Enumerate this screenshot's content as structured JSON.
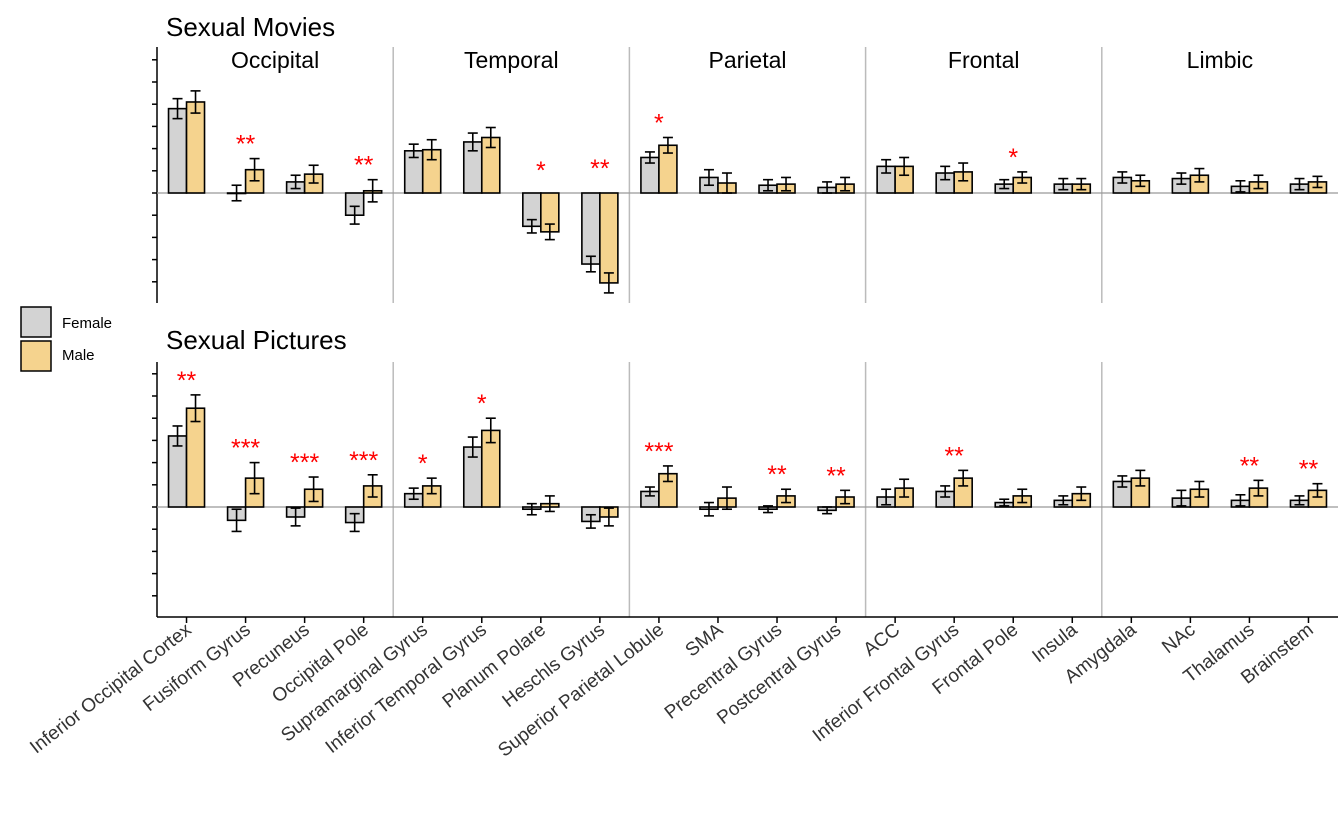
{
  "colors": {
    "female": "#d3d3d3",
    "male": "#f5d38e",
    "significance": "#ff0000",
    "divider": "#bbbbbb",
    "bar_stroke": "#000000"
  },
  "legend": {
    "entries": [
      "Female",
      "Male"
    ]
  },
  "chart_data": {
    "type": "bar",
    "groups": [
      "Occipital",
      "Temporal",
      "Parietal",
      "Frontal",
      "Limbic"
    ],
    "group_spans": [
      [
        0,
        3
      ],
      [
        4,
        7
      ],
      [
        8,
        11
      ],
      [
        12,
        15
      ],
      [
        16,
        19
      ]
    ],
    "categories": [
      "Inferior Occipital Cortex",
      "Fusiform Gyrus",
      "Precuneus",
      "Occipital Pole",
      "Supramarginal Gyrus",
      "Inferior Temporal Gyrus",
      "Planum Polare",
      "Heschls Gyrus",
      "Superior Parietal Lobule",
      "SMA",
      "Precentral Gyrus",
      "Postcentral Gyrus",
      "ACC",
      "Inferior Frontal Gyrus",
      "Frontal Pole",
      "Insula",
      "Amygdala",
      "NAc",
      "Thalamus",
      "Brainstem"
    ],
    "panels": [
      {
        "title": "Sexual Movies",
        "ylim": [
          -5,
          7
        ],
        "yticks": [
          -4,
          -3,
          -2,
          -1,
          0,
          1,
          2,
          3,
          4,
          5,
          6
        ],
        "series": [
          {
            "name": "Female",
            "values": [
              3.8,
              0.0,
              0.5,
              -1.0,
              1.9,
              2.3,
              -1.5,
              -3.2,
              1.6,
              0.7,
              0.35,
              0.25,
              1.2,
              0.9,
              0.4,
              0.4,
              0.7,
              0.65,
              0.3,
              0.4
            ],
            "errors": [
              0.45,
              0.35,
              0.3,
              0.4,
              0.3,
              0.4,
              0.3,
              0.35,
              0.25,
              0.35,
              0.25,
              0.25,
              0.3,
              0.3,
              0.2,
              0.25,
              0.25,
              0.25,
              0.25,
              0.25
            ]
          },
          {
            "name": "Male",
            "values": [
              4.1,
              1.05,
              0.85,
              0.1,
              1.95,
              2.5,
              -1.75,
              -4.05,
              2.15,
              0.45,
              0.4,
              0.4,
              1.2,
              0.95,
              0.7,
              0.4,
              0.55,
              0.8,
              0.5,
              0.5
            ],
            "errors": [
              0.5,
              0.5,
              0.4,
              0.5,
              0.45,
              0.45,
              0.35,
              0.45,
              0.35,
              0.45,
              0.3,
              0.3,
              0.4,
              0.4,
              0.25,
              0.25,
              0.25,
              0.3,
              0.3,
              0.25
            ]
          }
        ],
        "significance": [
          "",
          "**",
          "",
          "**",
          "",
          "",
          "*",
          "**",
          "*",
          "",
          "",
          "",
          "",
          "",
          "*",
          "",
          "",
          "",
          "",
          ""
        ]
      },
      {
        "title": "Sexual Pictures",
        "ylim": [
          -5,
          7
        ],
        "yticks": [
          -4,
          -3,
          -2,
          -1,
          0,
          1,
          2,
          3,
          4,
          5,
          6
        ],
        "series": [
          {
            "name": "Female",
            "values": [
              3.2,
              -0.6,
              -0.45,
              -0.7,
              0.6,
              2.7,
              -0.1,
              -0.65,
              0.7,
              -0.1,
              -0.1,
              -0.15,
              0.45,
              0.7,
              0.2,
              0.3,
              1.15,
              0.4,
              0.3,
              0.3
            ],
            "errors": [
              0.45,
              0.5,
              0.4,
              0.4,
              0.25,
              0.45,
              0.25,
              0.3,
              0.2,
              0.3,
              0.15,
              0.15,
              0.35,
              0.25,
              0.15,
              0.2,
              0.25,
              0.35,
              0.25,
              0.2
            ]
          },
          {
            "name": "Male",
            "values": [
              4.45,
              1.3,
              0.8,
              0.95,
              0.95,
              3.45,
              0.15,
              -0.45,
              1.5,
              0.4,
              0.5,
              0.45,
              0.85,
              1.3,
              0.5,
              0.6,
              1.3,
              0.8,
              0.85,
              0.75
            ],
            "errors": [
              0.6,
              0.7,
              0.55,
              0.5,
              0.35,
              0.55,
              0.35,
              0.4,
              0.35,
              0.5,
              0.3,
              0.3,
              0.4,
              0.35,
              0.3,
              0.3,
              0.35,
              0.35,
              0.35,
              0.3
            ]
          }
        ],
        "significance": [
          "**",
          "***",
          "***",
          "***",
          "*",
          "*",
          "",
          "",
          "***",
          "",
          "**",
          "**",
          "",
          "**",
          "",
          "",
          "",
          "",
          "**",
          "**"
        ]
      }
    ]
  }
}
